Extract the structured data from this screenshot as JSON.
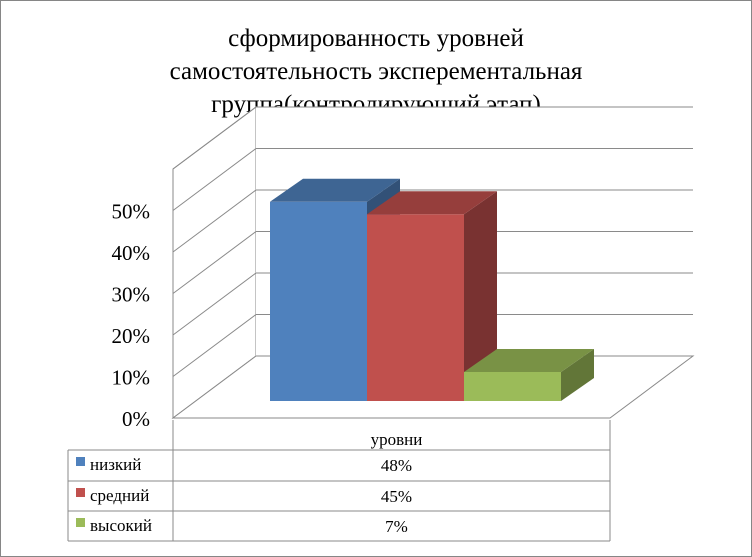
{
  "chart_data": {
    "type": "bar",
    "title_lines": [
      "сформированность уровней",
      "самостоятельность эксперементальная",
      "группа(контролирующий этап)"
    ],
    "categories": [
      "уровни"
    ],
    "series": [
      {
        "name": "низкий",
        "values": [
          48
        ],
        "label": "48%",
        "color": "#4F81BD"
      },
      {
        "name": "средний",
        "values": [
          45
        ],
        "label": "45%",
        "color": "#C0504D"
      },
      {
        "name": "высокий",
        "values": [
          7
        ],
        "label": "7%",
        "color": "#9BBB59"
      }
    ],
    "y_ticks": [
      "0%",
      "10%",
      "20%",
      "30%",
      "40%",
      "50%"
    ],
    "ylim": [
      0,
      60
    ],
    "grid": true,
    "legend": "data table below chart"
  }
}
